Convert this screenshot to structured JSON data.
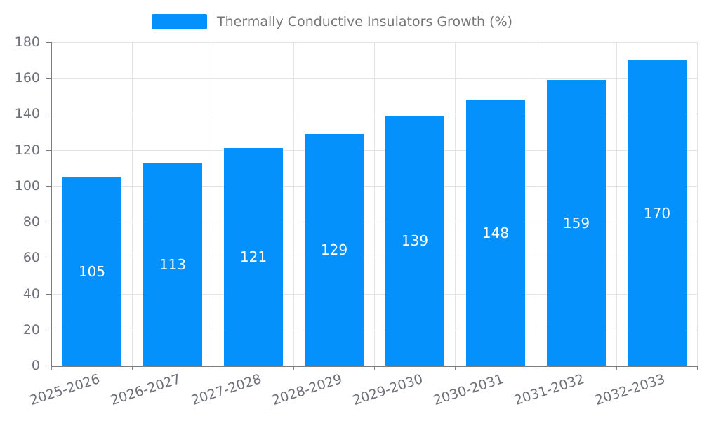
{
  "chart_data": {
    "type": "bar",
    "title": "",
    "legend": {
      "label": "Thermally Conductive Insulators Growth (%)",
      "position": "top"
    },
    "categories": [
      "2025-2026",
      "2026-2027",
      "2027-2028",
      "2028-2029",
      "2029-2030",
      "2030-2031",
      "2031-2032",
      "2032-2033"
    ],
    "series": [
      {
        "name": "Thermally Conductive Insulators Growth (%)",
        "values": [
          105,
          113,
          121,
          129,
          139,
          148,
          159,
          170
        ]
      }
    ],
    "xlabel": "",
    "ylabel": "",
    "ylim": [
      0,
      180
    ],
    "yticks": [
      0,
      20,
      40,
      60,
      80,
      100,
      120,
      140,
      160,
      180
    ],
    "grid": true,
    "value_label_position": "inside-center",
    "x_label_rotation_deg": -18,
    "colors": {
      "bar": "#0591fb",
      "axis_line": "#7d7d7d",
      "gridline": "#e3e3e3",
      "tick_text": "#6e7079",
      "legend_text": "#757575",
      "value_label_text": "#ffffff",
      "background": "#ffffff"
    }
  }
}
